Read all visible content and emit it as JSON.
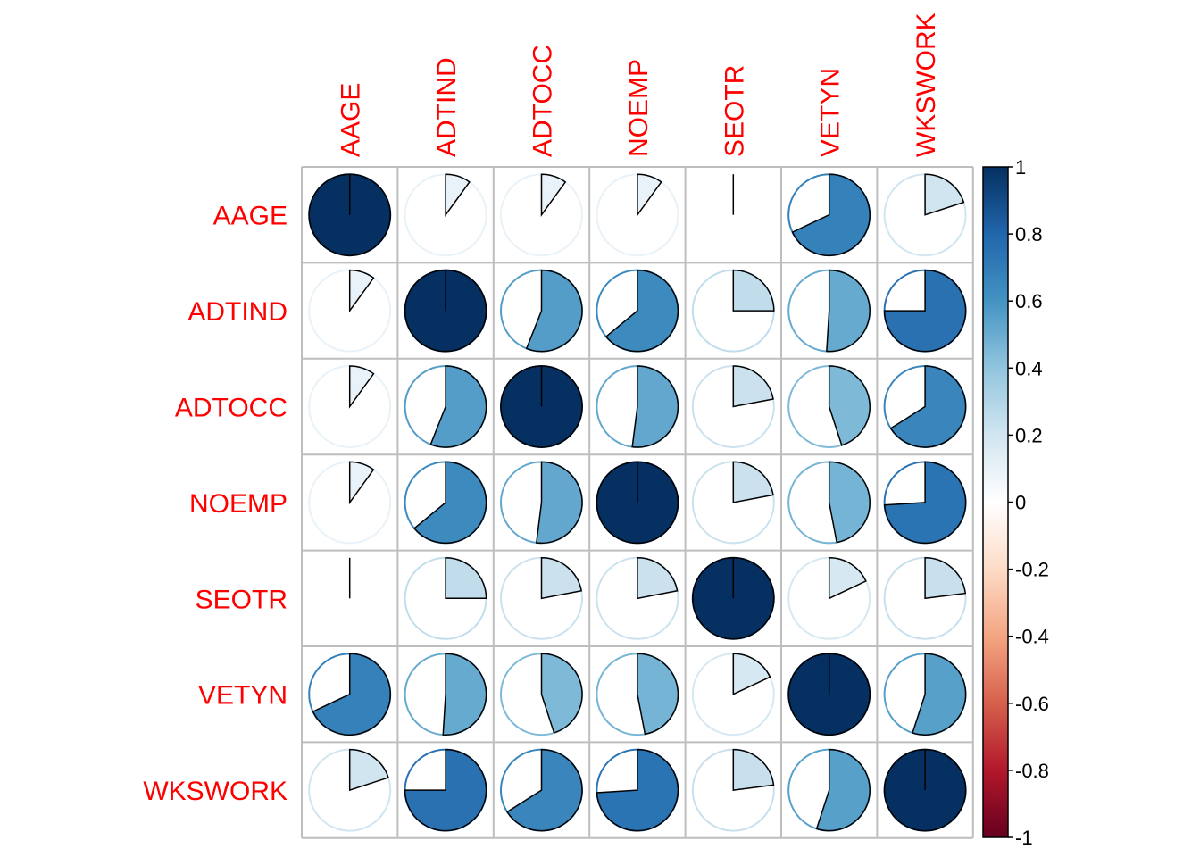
{
  "chart_data": {
    "type": "heatmap",
    "method": "pie",
    "title": "",
    "variables": [
      "AAGE",
      "ADTIND",
      "ADTOCC",
      "NOEMP",
      "SEOTR",
      "VETYN",
      "WKSWORK"
    ],
    "matrix": [
      [
        1.0,
        0.1,
        0.1,
        0.1,
        0.0,
        0.68,
        0.2
      ],
      [
        0.1,
        1.0,
        0.56,
        0.64,
        0.25,
        0.51,
        0.75
      ],
      [
        0.1,
        0.56,
        1.0,
        0.52,
        0.22,
        0.45,
        0.66
      ],
      [
        0.1,
        0.64,
        0.52,
        1.0,
        0.22,
        0.47,
        0.74
      ],
      [
        0.0,
        0.25,
        0.22,
        0.22,
        1.0,
        0.18,
        0.23
      ],
      [
        0.68,
        0.51,
        0.45,
        0.47,
        0.18,
        1.0,
        0.55
      ],
      [
        0.2,
        0.75,
        0.66,
        0.74,
        0.23,
        0.55,
        1.0
      ]
    ],
    "colorbar": {
      "range": [
        -1,
        1
      ],
      "ticks": [
        "1",
        "0.8",
        "0.6",
        "0.4",
        "0.2",
        "0",
        "-0.2",
        "-0.4",
        "-0.6",
        "-0.8",
        "-1"
      ],
      "palette": [
        "#67001F",
        "#B2182B",
        "#D6604D",
        "#F4A582",
        "#FDDBC7",
        "#FFFFFF",
        "#D1E5F0",
        "#92C5DE",
        "#4393C3",
        "#2166AC",
        "#053061"
      ]
    },
    "label_color": "#FF0000",
    "grid": true
  }
}
